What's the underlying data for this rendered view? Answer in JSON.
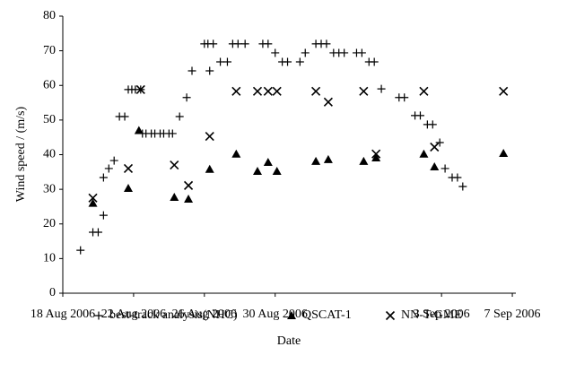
{
  "chart_data": {
    "type": "scatter",
    "x_label": "Date",
    "y_label": "Wind speed / (m/s)",
    "xlim": [
      0,
      25.6
    ],
    "ylim": [
      0,
      80
    ],
    "xticks": [
      {
        "value": 0,
        "label": "18 Aug 2006"
      },
      {
        "value": 4,
        "label": "22 Aug 2006"
      },
      {
        "value": 8,
        "label": "26 Aug 2006"
      },
      {
        "value": 12,
        "label": "30 Aug 2006"
      },
      {
        "value": 21.4,
        "label": "3 Sep 2006"
      },
      {
        "value": 25.4,
        "label": "7 Sep 2006"
      }
    ],
    "yticks": [
      0,
      10,
      20,
      30,
      40,
      50,
      60,
      70,
      80
    ],
    "grid": false,
    "legend": "bottom",
    "series": [
      {
        "name": "best-track analysis(NHC)",
        "marker": "plus",
        "color": "#000000",
        "x": [
          1.0,
          1.7,
          2.0,
          2.3,
          2.3,
          2.6,
          2.9,
          3.2,
          3.5,
          3.7,
          3.9,
          4.1,
          4.4,
          4.5,
          4.7,
          5.0,
          5.2,
          5.5,
          5.7,
          6.0,
          6.2,
          6.6,
          7.0,
          7.3,
          8.0,
          8.2,
          8.3,
          8.5,
          8.9,
          9.3,
          9.6,
          9.9,
          10.3,
          11.3,
          11.6,
          12.0,
          12.4,
          12.7,
          13.4,
          13.7,
          14.3,
          14.6,
          14.9,
          15.3,
          15.6,
          15.9,
          16.6,
          16.9,
          17.3,
          17.6,
          18.0,
          19.0,
          19.3,
          19.9,
          20.2,
          20.6,
          20.9,
          21.3,
          21.6,
          22.0,
          22.3,
          22.6
        ],
        "values": [
          12.4,
          17.6,
          17.6,
          22.5,
          33.4,
          36,
          38.3,
          51,
          51,
          58.8,
          58.8,
          58.8,
          58.8,
          46.1,
          46.1,
          46.1,
          46.1,
          46.1,
          46.1,
          46.1,
          46.1,
          51,
          56.5,
          64.2,
          72,
          72,
          64.2,
          72,
          66.8,
          66.8,
          72,
          72,
          72,
          72,
          72,
          69.4,
          66.8,
          66.8,
          66.8,
          69.4,
          72,
          72,
          72,
          69.4,
          69.4,
          69.4,
          69.4,
          69.4,
          66.8,
          66.8,
          59,
          56.5,
          56.5,
          51.3,
          51.3,
          48.7,
          48.7,
          43.5,
          36,
          33.4,
          33.4,
          30.8
        ]
      },
      {
        "name": "QSCAT-1",
        "marker": "triangle",
        "color": "#000000",
        "x": [
          1.7,
          3.7,
          4.3,
          6.3,
          7.1,
          8.3,
          9.8,
          11.0,
          11.6,
          12.1,
          14.3,
          15.0,
          17.0,
          17.7,
          20.4,
          21.0,
          24.9
        ],
        "values": [
          26,
          30.3,
          47,
          27.7,
          27.2,
          35.8,
          40.2,
          35.2,
          37.8,
          35.2,
          38.1,
          38.6,
          38.1,
          39.1,
          40.2,
          36.5,
          40.4
        ]
      },
      {
        "name": "NN-T-GME",
        "marker": "cross",
        "color": "#000000",
        "x": [
          1.7,
          3.7,
          4.4,
          6.3,
          7.1,
          8.3,
          9.8,
          11.0,
          11.6,
          12.1,
          14.3,
          15.0,
          17.0,
          17.7,
          20.4,
          21.0,
          24.9
        ],
        "values": [
          27.5,
          36,
          58.8,
          37,
          31.1,
          45.3,
          58.3,
          58.3,
          58.3,
          58.3,
          58.3,
          55.2,
          58.3,
          40.2,
          58.3,
          42.2,
          58.3
        ]
      }
    ]
  }
}
